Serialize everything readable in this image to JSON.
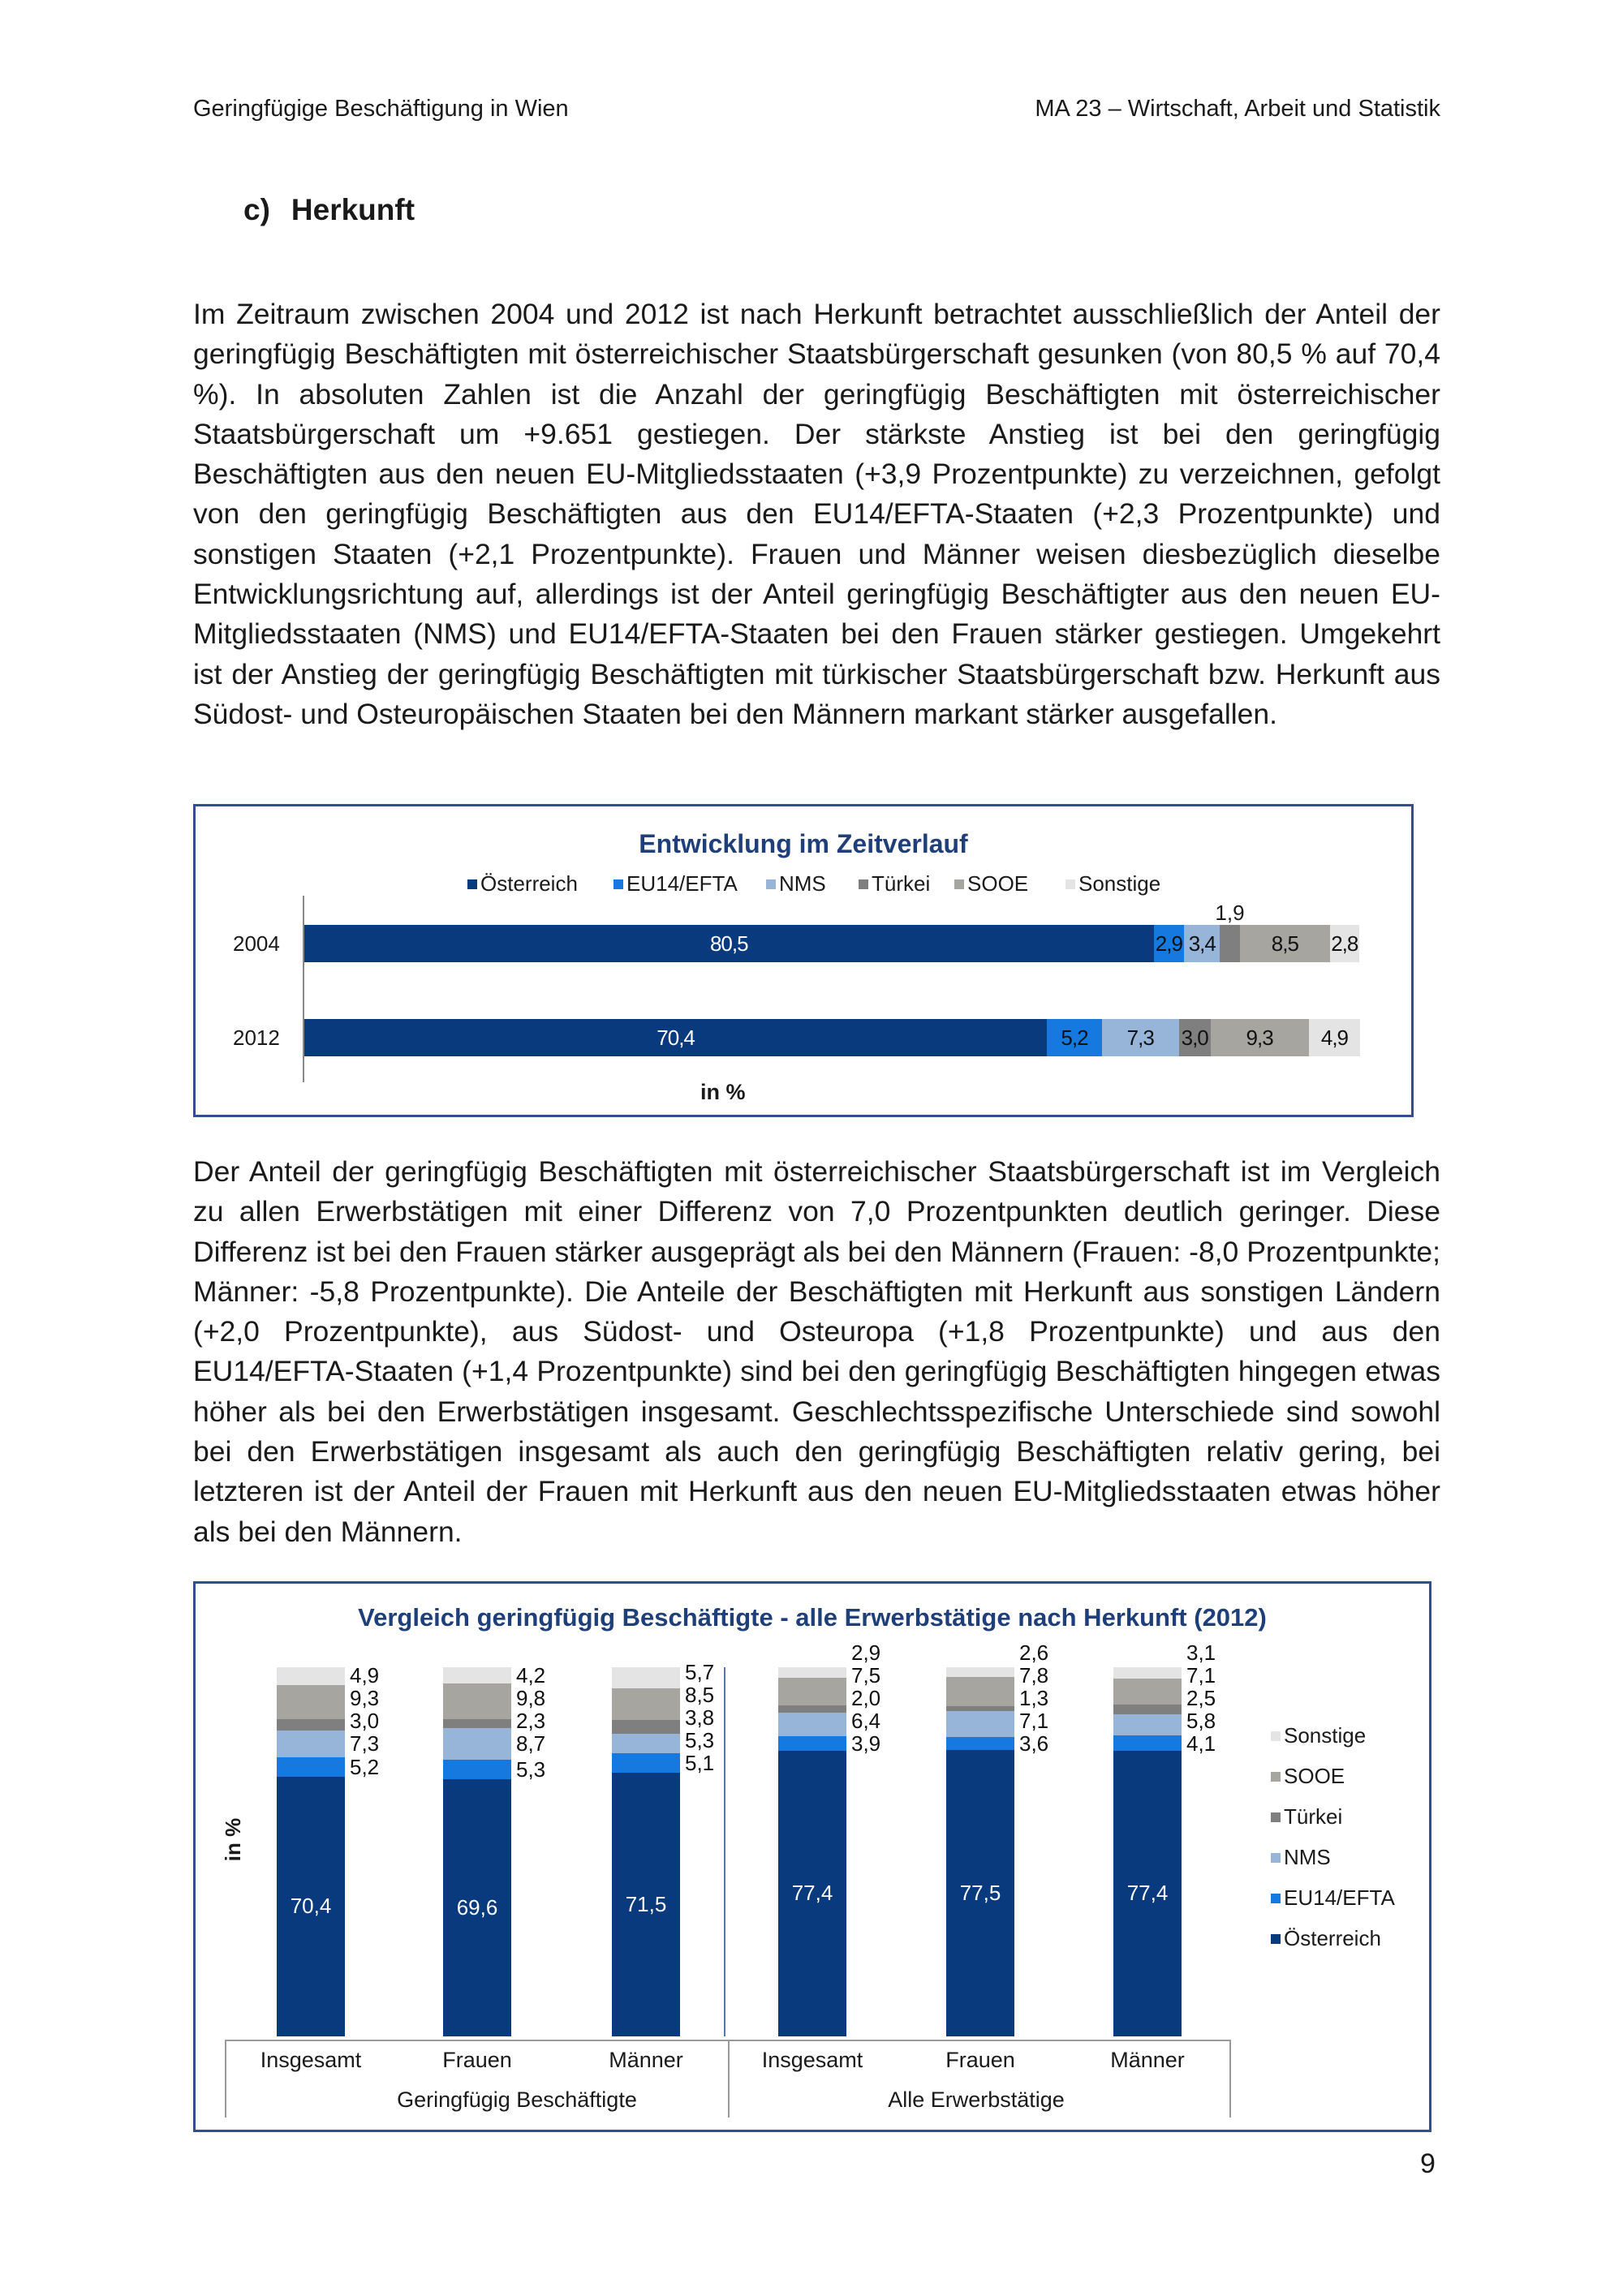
{
  "header": {
    "left": "Geringfügige Beschäftigung in Wien",
    "right": "MA 23 – Wirtschaft, Arbeit und Statistik"
  },
  "section": {
    "marker": "c)",
    "title": "Herkunft"
  },
  "paragraphs": [
    "Im Zeitraum zwischen 2004 und 2012 ist nach Herkunft betrachtet ausschließlich der Anteil der geringfügig Beschäftigten mit österreichischer Staatsbürgerschaft gesunken (von 80,5 % auf 70,4 %). In absoluten Zahlen ist die Anzahl der geringfügig Beschäftigten mit österreichischer Staatsbürgerschaft um +9.651 gestiegen. Der stärkste Anstieg ist bei den geringfügig Beschäftigten aus den neuen EU-Mitgliedsstaaten (+3,9 Prozentpunkte) zu verzeichnen, gefolgt von den geringfügig Beschäftigten aus den EU14/EFTA-Staaten (+2,3 Prozentpunkte) und sonstigen Staaten (+2,1 Prozentpunkte). Frauen und Männer weisen diesbezüglich dieselbe Entwicklungsrichtung auf, allerdings ist der Anteil geringfügig Beschäftigter aus den neuen EU-Mitgliedsstaaten (NMS) und EU14/EFTA-Staaten bei den Frauen stärker gestiegen. Umgekehrt ist der Anstieg der geringfügig Beschäftigten mit türkischer Staatsbürgerschaft bzw. Herkunft aus Südost- und Osteuropäischen Staaten bei den Männern markant stärker ausgefallen.",
    "Der Anteil der geringfügig Beschäftigten mit österreichischer Staatsbürgerschaft ist im Vergleich zu allen Erwerbstätigen mit einer Differenz von 7,0 Prozentpunkten deutlich geringer. Diese Differenz ist bei den Frauen stärker ausgeprägt als bei den Männern (Frauen: -8,0 Prozentpunkte; Männer: -5,8 Prozentpunkte). Die Anteile der Beschäftigten mit Herkunft aus sonstigen Ländern (+2,0 Prozentpunkte), aus Südost- und Osteuropa (+1,8 Prozentpunkte) und aus den EU14/EFTA-Staaten (+1,4 Prozentpunkte) sind bei den geringfügig Beschäftigten hingegen etwas höher als bei den Erwerbstätigen insgesamt. Geschlechtsspezifische Unterschiede sind sowohl bei den Erwerbstätigen insgesamt als auch den geringfügig Beschäftigten relativ gering, bei letzteren ist der Anteil der Frauen mit Herkunft aus den neuen EU-Mitgliedsstaaten etwas höher als bei den Männern."
  ],
  "colors": {
    "Österreich": "#0a3a7e",
    "EU14/EFTA": "#1679e0",
    "NMS": "#97b4d9",
    "Türkei": "#7f7f7f",
    "SOOE": "#a6a5a0",
    "Sonstige": "#e4e4e4",
    "border": "#2f4f8f",
    "title": "#1f3f7a"
  },
  "chart_data": [
    {
      "type": "bar",
      "orientation": "horizontal",
      "stacked": true,
      "title": "Entwicklung im Zeitverlauf",
      "xlabel": "in %",
      "legend": "top",
      "categories": [
        "2004",
        "2012"
      ],
      "series": [
        {
          "name": "Österreich",
          "values": [
            80.5,
            70.4
          ]
        },
        {
          "name": "EU14/EFTA",
          "values": [
            2.9,
            5.2
          ]
        },
        {
          "name": "NMS",
          "values": [
            3.4,
            7.3
          ]
        },
        {
          "name": "Türkei",
          "values": [
            1.9,
            3.0
          ]
        },
        {
          "name": "SOOE",
          "values": [
            8.5,
            9.3
          ]
        },
        {
          "name": "Sonstige",
          "values": [
            2.8,
            4.9
          ]
        }
      ]
    },
    {
      "type": "bar",
      "orientation": "vertical",
      "stacked": true,
      "title": "Vergleich geringfügig Beschäftigte -  alle Erwerbstätige nach Herkunft (2012)",
      "ylabel": "in %",
      "legend": "right",
      "categories": [
        "Insgesamt",
        "Frauen",
        "Männer",
        "Insgesamt",
        "Frauen",
        "Männer"
      ],
      "groups": [
        "Geringfügig Beschäftigte",
        "Alle Erwerbstätige"
      ],
      "series": [
        {
          "name": "Österreich",
          "values": [
            70.4,
            69.6,
            71.5,
            77.4,
            77.5,
            77.4
          ]
        },
        {
          "name": "EU14/EFTA",
          "values": [
            5.2,
            5.3,
            5.1,
            3.9,
            3.6,
            4.1
          ]
        },
        {
          "name": "NMS",
          "values": [
            7.3,
            8.7,
            5.3,
            6.4,
            7.1,
            5.8
          ]
        },
        {
          "name": "Türkei",
          "values": [
            3.0,
            2.3,
            3.8,
            2.0,
            1.3,
            2.5
          ]
        },
        {
          "name": "SOOE",
          "values": [
            9.3,
            9.8,
            8.5,
            7.5,
            7.8,
            7.1
          ]
        },
        {
          "name": "Sonstige",
          "values": [
            4.9,
            4.2,
            5.7,
            2.9,
            2.6,
            3.1
          ]
        }
      ]
    }
  ],
  "page_number": "9"
}
